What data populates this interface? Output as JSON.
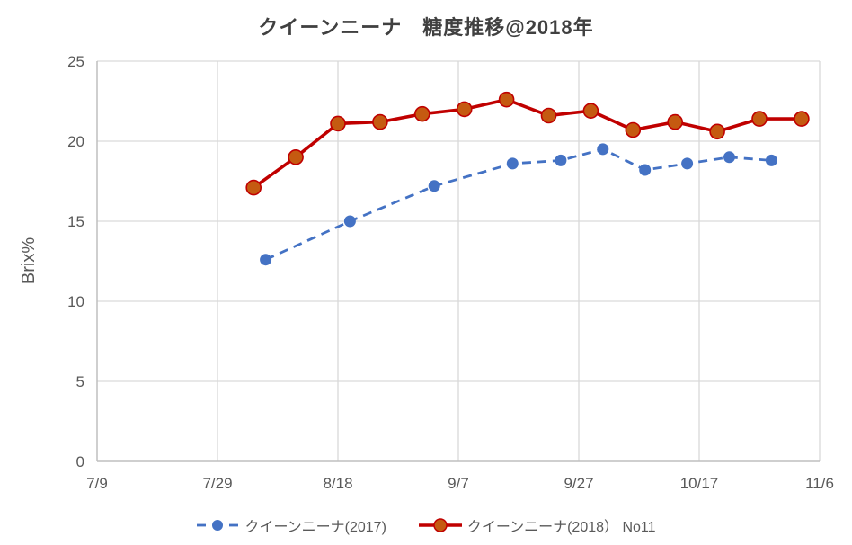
{
  "chart_data": {
    "type": "line",
    "title": "クイーンニーナ　糖度推移@2018年",
    "ylabel": "Brix%",
    "y_axis": {
      "min": 0,
      "max": 25,
      "ticks": [
        0,
        5,
        10,
        15,
        20,
        25
      ]
    },
    "x_axis": {
      "tick_labels": [
        "7/9",
        "7/29",
        "8/18",
        "9/7",
        "9/27",
        "10/17",
        "11/6"
      ],
      "tick_days": [
        0,
        20,
        40,
        60,
        80,
        100,
        120
      ],
      "start_date": "7/9",
      "end_date": "11/6"
    },
    "grid": true,
    "legend_position": "bottom",
    "colors": {
      "grid": "#D9D9D9",
      "axis": "#BFBFBF",
      "tick_text": "#595959",
      "title_text": "#404040",
      "series_2017": "#4472C4",
      "series_2018_line": "#C00000",
      "series_2018_marker_fill": "#C55A11"
    },
    "series": [
      {
        "name": "クイーンニーナ(2017)",
        "line_style": "dashed",
        "marker": "circle",
        "color": "#4472C4",
        "marker_fill": "#4472C4",
        "points": [
          {
            "date": "8/6",
            "day": 28,
            "value": 12.6
          },
          {
            "date": "8/20",
            "day": 42,
            "value": 15.0
          },
          {
            "date": "9/3",
            "day": 56,
            "value": 17.2
          },
          {
            "date": "9/16",
            "day": 69,
            "value": 18.6
          },
          {
            "date": "9/24",
            "day": 77,
            "value": 18.8
          },
          {
            "date": "10/1",
            "day": 84,
            "value": 19.5
          },
          {
            "date": "10/8",
            "day": 91,
            "value": 18.2
          },
          {
            "date": "10/15",
            "day": 98,
            "value": 18.6
          },
          {
            "date": "10/22",
            "day": 105,
            "value": 19.0
          },
          {
            "date": "10/29",
            "day": 112,
            "value": 18.8
          }
        ]
      },
      {
        "name": "クイーンニーナ(2018） No11",
        "line_style": "solid",
        "marker": "circle",
        "color": "#C00000",
        "marker_fill": "#C55A11",
        "points": [
          {
            "date": "8/4",
            "day": 26,
            "value": 17.1
          },
          {
            "date": "8/11",
            "day": 33,
            "value": 19.0
          },
          {
            "date": "8/18",
            "day": 40,
            "value": 21.1
          },
          {
            "date": "8/25",
            "day": 47,
            "value": 21.2
          },
          {
            "date": "9/1",
            "day": 54,
            "value": 21.7
          },
          {
            "date": "9/8",
            "day": 61,
            "value": 22.0
          },
          {
            "date": "9/15",
            "day": 68,
            "value": 22.6
          },
          {
            "date": "9/22",
            "day": 75,
            "value": 21.6
          },
          {
            "date": "9/29",
            "day": 82,
            "value": 21.9
          },
          {
            "date": "10/6",
            "day": 89,
            "value": 20.7
          },
          {
            "date": "10/13",
            "day": 96,
            "value": 21.2
          },
          {
            "date": "10/20",
            "day": 103,
            "value": 20.6
          },
          {
            "date": "10/27",
            "day": 110,
            "value": 21.4
          },
          {
            "date": "11/3",
            "day": 117,
            "value": 21.4
          }
        ]
      }
    ]
  }
}
